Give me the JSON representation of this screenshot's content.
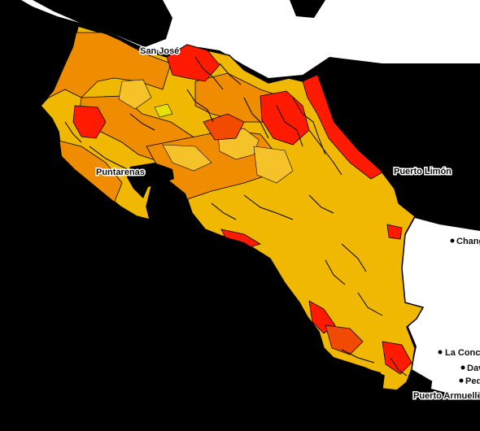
{
  "map": {
    "colors": {
      "sea": "#000000",
      "land_outside": "#ffffff",
      "class_low": "#f0b800",
      "class_light": "#f6c22a",
      "class_mid": "#f08c00",
      "class_high": "#f24a00",
      "class_very_high": "#ff1a00",
      "class_minor": "#e8e000",
      "boundary": "#000000"
    },
    "places": [
      {
        "name": "San José",
        "key": "san-jose"
      },
      {
        "name": "Puerto Limón",
        "key": "puerto-limon"
      },
      {
        "name": "Puntarenas",
        "key": "puntarenas"
      },
      {
        "name": "Changuinola",
        "key": "changuinola"
      },
      {
        "name": "La Concepción",
        "key": "la-concepcion"
      },
      {
        "name": "David",
        "key": "david"
      },
      {
        "name": "Pedregal",
        "key": "pedregal"
      },
      {
        "name": "Puerto Armuelles",
        "key": "puerto-armuelles"
      }
    ]
  }
}
